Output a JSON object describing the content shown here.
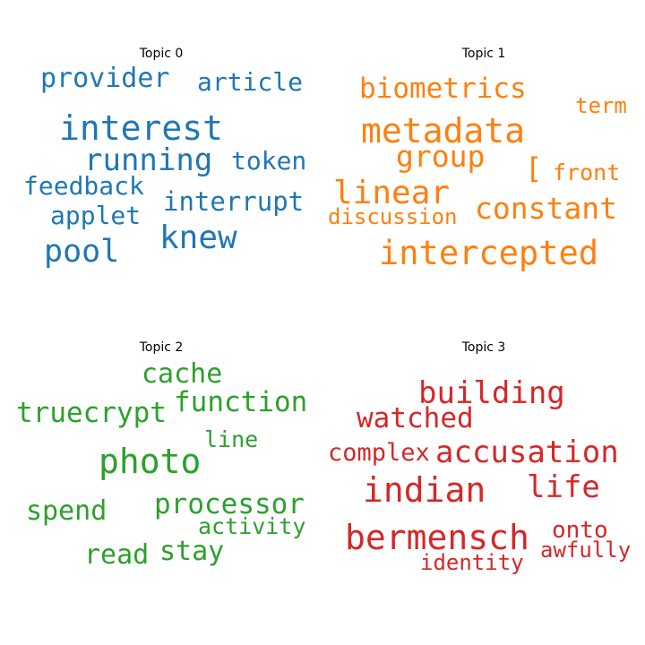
{
  "chart_data": {
    "type": "wordcloud",
    "panels": [
      {
        "title": "Topic 0",
        "color": "#1f77b4",
        "words": [
          "interest",
          "knew",
          "running",
          "pool",
          "provider",
          "article",
          "token",
          "feedback",
          "interrupt",
          "applet"
        ]
      },
      {
        "title": "Topic 1",
        "color": "#ff7f0e",
        "words": [
          "metadata",
          "intercepted",
          "biometrics",
          "linear",
          "constant",
          "group",
          "term",
          "front",
          "[",
          "discussion"
        ]
      },
      {
        "title": "Topic 2",
        "color": "#2ca02c",
        "words": [
          "photo",
          "function",
          "truecrypt",
          "processor",
          "cache",
          "spend",
          "read",
          "stay",
          "line",
          "activity"
        ]
      },
      {
        "title": "Topic 3",
        "color": "#d62728",
        "words": [
          "indian",
          "bermensch",
          "building",
          "accusation",
          "watched",
          "life",
          "complex",
          "onto",
          "awfully",
          "identity"
        ]
      }
    ]
  }
}
